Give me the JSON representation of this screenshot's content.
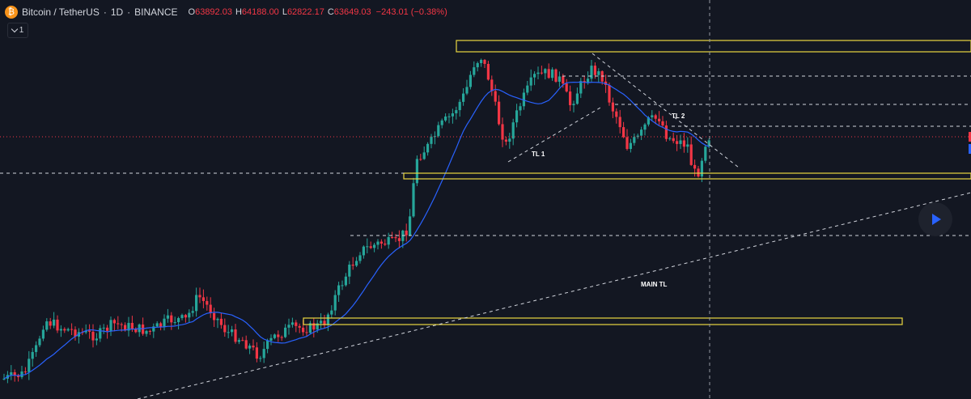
{
  "symbol": {
    "name": "Bitcoin / TetherUS",
    "interval": "1D",
    "exchange": "BINANCE",
    "separator": "·"
  },
  "ohlc": {
    "open_label": "O",
    "open": "63892.03",
    "high_label": "H",
    "high": "64188.00",
    "low_label": "L",
    "low": "62822.17",
    "close_label": "C",
    "close": "63649.03",
    "change": "−243.01 (−0.38%)"
  },
  "indicators_toggle": {
    "count": "1"
  },
  "annotations": {
    "tl1": "TL 1",
    "tl2": "TL 2",
    "main_tl": "MAIN TL"
  },
  "icons": {
    "coin": "bitcoin-logo-icon",
    "collapse": "chevron-down-icon",
    "replay": "play-icon"
  },
  "colors": {
    "background": "#131722",
    "up": "#26a69a",
    "down": "#f23645",
    "moving_average": "#2962ff",
    "zones": "#e9d640",
    "lines": "#d1d4dc"
  }
}
